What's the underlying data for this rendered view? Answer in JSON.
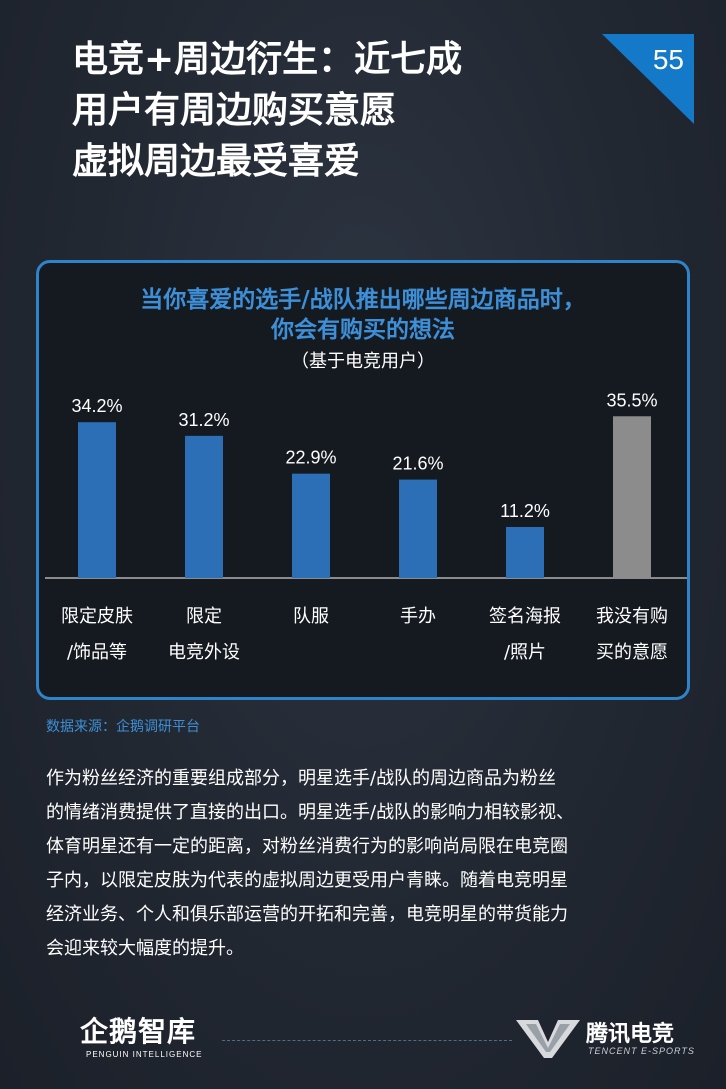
{
  "header": {
    "title_lines": [
      "电竞+周边衍生：近七成",
      "用户有周边购买意愿",
      "虚拟周边最受喜爱"
    ],
    "page_number": "55"
  },
  "chart_data": {
    "type": "bar",
    "title_lines": [
      "当你喜爱的选手/战队推出哪些周边商品时，",
      "你会有购买的想法"
    ],
    "subtitle": "（基于电竞用户）",
    "categories": [
      [
        "限定皮肤",
        "/饰品等"
      ],
      [
        "限定",
        "电竞外设"
      ],
      [
        "队服"
      ],
      [
        "手办"
      ],
      [
        "签名海报",
        "/照片"
      ],
      [
        "我没有购",
        "买的意愿"
      ]
    ],
    "values": [
      34.2,
      31.2,
      22.9,
      21.6,
      11.2,
      35.5
    ],
    "value_labels": [
      "34.2%",
      "31.2%",
      "22.9%",
      "21.6%",
      "11.2%",
      "35.5%"
    ],
    "unit": "%",
    "ylim": [
      0,
      45
    ],
    "colors": [
      "#2c6fb6",
      "#2c6fb6",
      "#2c6fb6",
      "#2c6fb6",
      "#2c6fb6",
      "#8c8c8c"
    ],
    "grid": false,
    "legend": "none"
  },
  "source": "数据来源：企鹅调研平台",
  "body_lines": [
    "作为粉丝经济的重要组成部分，明星选手/战队的周边商品为粉丝",
    "的情绪消费提供了直接的出口。明星选手/战队的影响力相较影视、",
    "体育明星还有一定的距离，对粉丝消费行为的影响尚局限在电竞圈",
    "子内，以限定皮肤为代表的虚拟周边更受用户青睐。随着电竞明星",
    "经济业务、个人和俱乐部运营的开拓和完善，电竞明星的带货能力",
    "会迎来较大幅度的提升。"
  ],
  "footer": {
    "left_brand": "企鹅智库",
    "left_brand_en": "PENGUIN INTELLIGENCE",
    "right_brand": "腾讯电竞",
    "right_brand_en": "TENCENT E-SPORTS"
  },
  "theme": {
    "accent": "#2f84c8",
    "title_blue": "#3d8fd7",
    "background": "#222832"
  }
}
